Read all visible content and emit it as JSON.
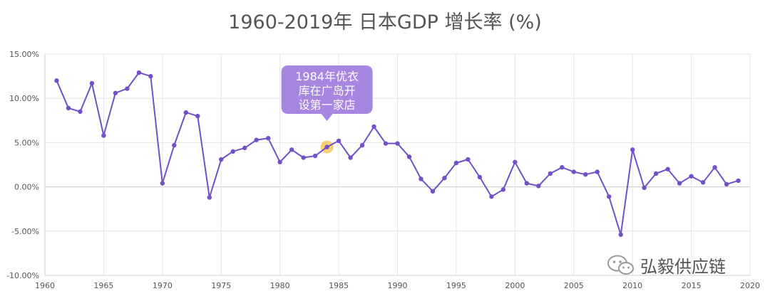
{
  "chart_data": {
    "type": "line",
    "title": "1960-2019年 日本GDP 增长率 (%)",
    "xlabel": "",
    "ylabel": "",
    "xlim": [
      1960,
      2020
    ],
    "ylim": [
      -10,
      15
    ],
    "y_ticks": [
      -10,
      -5,
      0,
      5,
      10,
      15
    ],
    "y_tick_labels": [
      "-10.00%",
      "-5.00%",
      "0.00%",
      "5.00%",
      "10.00%",
      "15.00%"
    ],
    "x_ticks": [
      1960,
      1965,
      1970,
      1975,
      1980,
      1985,
      1990,
      1995,
      2000,
      2005,
      2010,
      2015,
      2020
    ],
    "x_tick_labels": [
      "1960",
      "1965",
      "1970",
      "1975",
      "1980",
      "1985",
      "1990",
      "1995",
      "2000",
      "2005",
      "2010",
      "2015",
      "2020"
    ],
    "grid": true,
    "series_color": "#7150c8",
    "series": [
      {
        "x": [
          1961,
          1962,
          1963,
          1964,
          1965,
          1966,
          1967,
          1968,
          1969,
          1970,
          1971,
          1972,
          1973,
          1974,
          1975,
          1976,
          1977,
          1978,
          1979,
          1980,
          1981,
          1982,
          1983,
          1984,
          1985,
          1986,
          1987,
          1988,
          1989,
          1990,
          1991,
          1992,
          1993,
          1994,
          1995,
          1996,
          1997,
          1998,
          1999,
          2000,
          2001,
          2002,
          2003,
          2004,
          2005,
          2006,
          2007,
          2008,
          2009,
          2010,
          2011,
          2012,
          2013,
          2014,
          2015,
          2016,
          2017,
          2018,
          2019
        ],
        "values": [
          12.0,
          8.9,
          8.5,
          11.7,
          5.8,
          10.6,
          11.1,
          12.9,
          12.5,
          0.4,
          4.7,
          8.4,
          8.0,
          -1.2,
          3.1,
          4.0,
          4.4,
          5.3,
          5.5,
          2.8,
          4.2,
          3.3,
          3.5,
          4.5,
          5.2,
          3.3,
          4.7,
          6.8,
          4.9,
          4.9,
          3.4,
          0.9,
          -0.5,
          1.0,
          2.7,
          3.1,
          1.1,
          -1.1,
          -0.3,
          2.8,
          0.4,
          0.1,
          1.5,
          2.2,
          1.7,
          1.4,
          1.7,
          -1.1,
          -5.4,
          4.2,
          -0.1,
          1.5,
          2.0,
          0.4,
          1.2,
          0.5,
          2.2,
          0.3,
          0.7
        ]
      }
    ],
    "annotation": {
      "x": 1984,
      "y": 4.5,
      "text_lines": [
        "1984年优衣",
        "库在广岛开",
        "设第一家店"
      ],
      "bubble_color": "#a586e0",
      "marker_color": "#f7c85c"
    }
  },
  "watermark": {
    "text": "弘毅供应链",
    "icon": "wechat-icon"
  }
}
